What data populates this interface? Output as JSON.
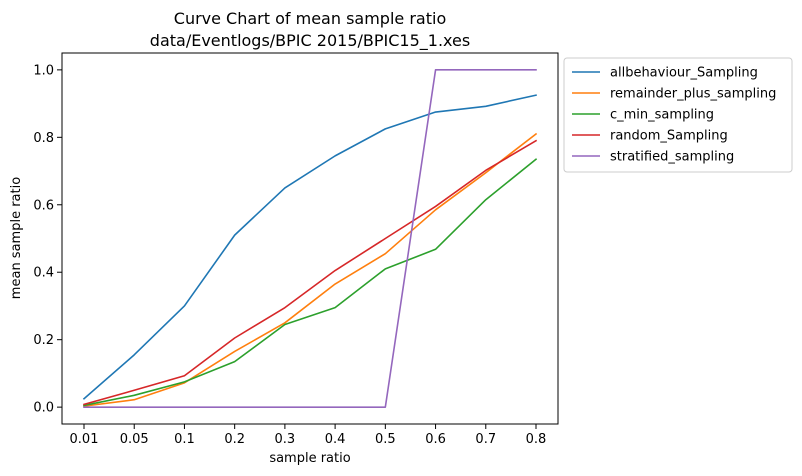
{
  "chart_data": {
    "type": "line",
    "title": "Curve Chart of mean sample ratio",
    "subtitle": "data/Eventlogs/BPIC 2015/BPIC15_1.xes",
    "xlabel": "sample ratio",
    "ylabel": "mean sample ratio",
    "categories": [
      "0.01",
      "0.05",
      "0.1",
      "0.2",
      "0.3",
      "0.4",
      "0.5",
      "0.6",
      "0.7",
      "0.8"
    ],
    "ylim": [
      -0.05,
      1.05
    ],
    "yticks": [
      "0.0",
      "0.2",
      "0.4",
      "0.6",
      "0.8",
      "1.0"
    ],
    "grid": false,
    "legend_position": "outside-right-top",
    "series": [
      {
        "name": "allbehaviour_Sampling",
        "color": "#1f77b4",
        "values": [
          0.025,
          0.155,
          0.3,
          0.51,
          0.65,
          0.745,
          0.825,
          0.875,
          0.892,
          0.925
        ]
      },
      {
        "name": "remainder_plus_sampling",
        "color": "#ff7f0e",
        "values": [
          0.003,
          0.022,
          0.072,
          0.165,
          0.25,
          0.365,
          0.455,
          0.585,
          0.695,
          0.81
        ]
      },
      {
        "name": "c_min_sampling",
        "color": "#2ca02c",
        "values": [
          0.005,
          0.035,
          0.075,
          0.135,
          0.245,
          0.295,
          0.41,
          0.468,
          0.615,
          0.735
        ]
      },
      {
        "name": "random_Sampling",
        "color": "#d62728",
        "values": [
          0.008,
          0.05,
          0.093,
          0.205,
          0.295,
          0.405,
          0.5,
          0.595,
          0.702,
          0.79
        ]
      },
      {
        "name": "stratified_sampling",
        "color": "#9467bd",
        "values": [
          0.0,
          0.0,
          0.0,
          0.0,
          0.0,
          0.0,
          0.0,
          1.0,
          1.0,
          1.0
        ]
      }
    ]
  }
}
